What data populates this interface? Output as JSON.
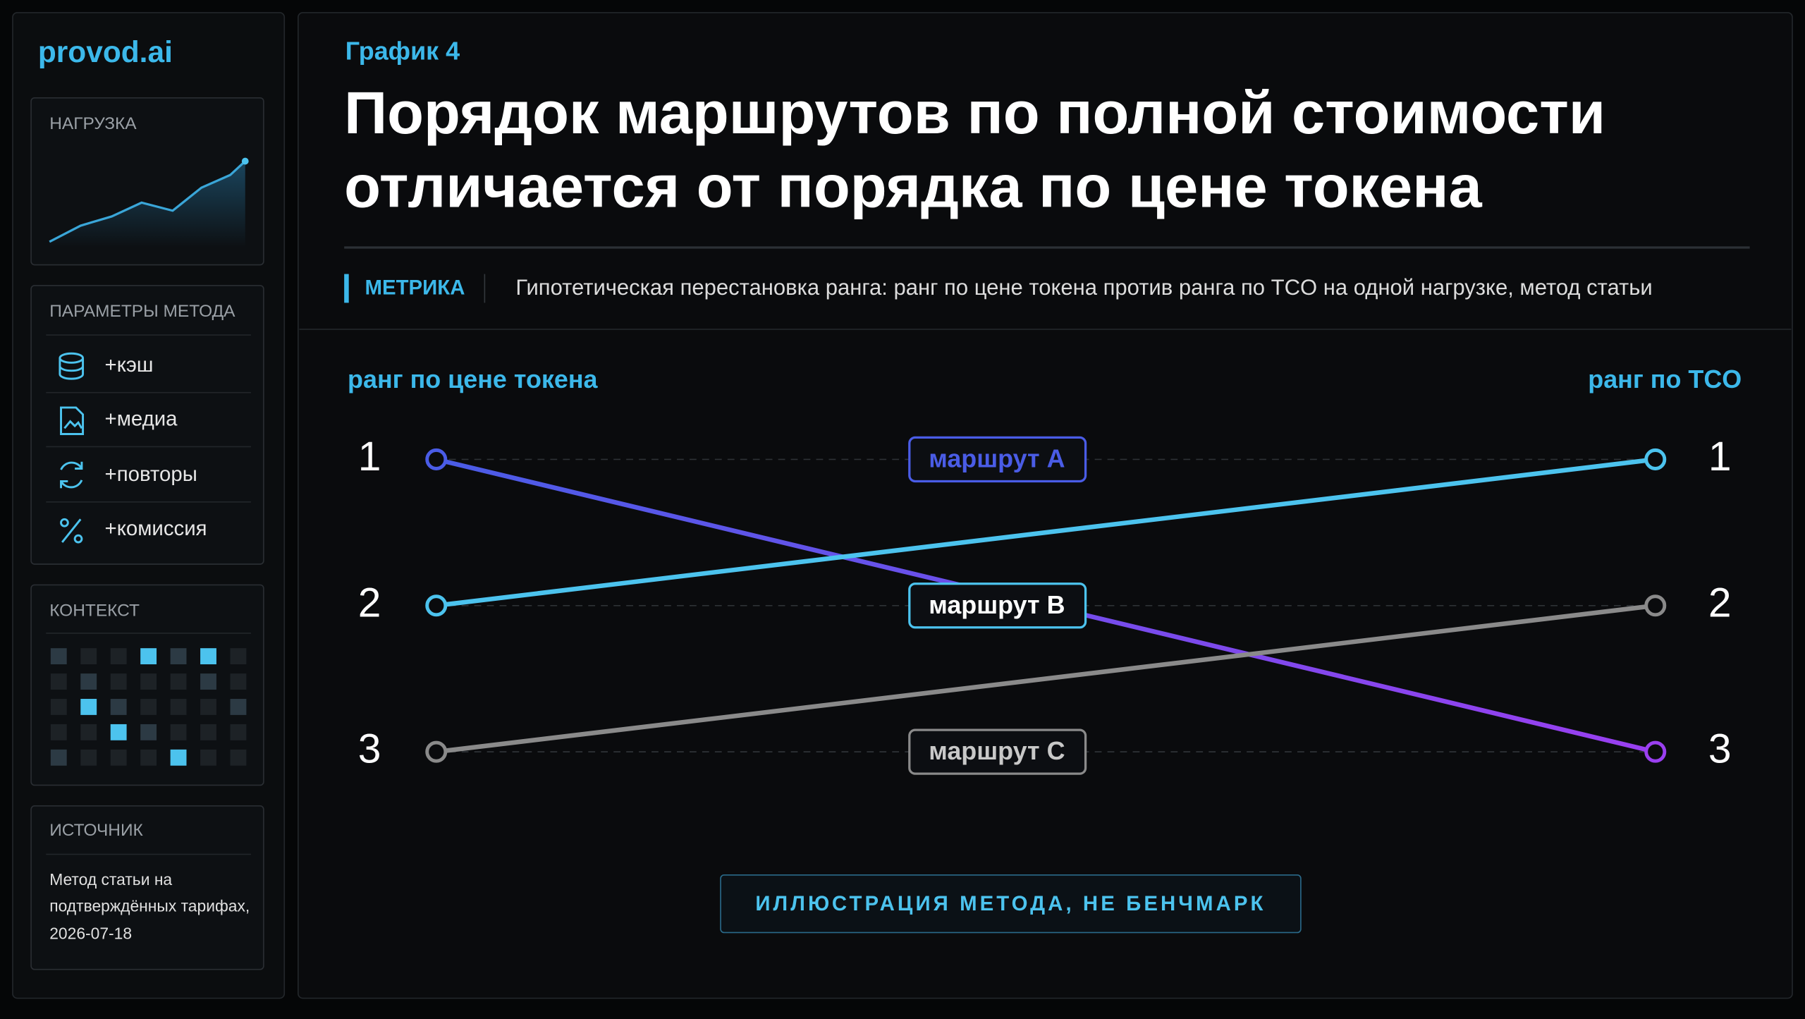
{
  "sidebar": {
    "brand": "provod.ai",
    "load_title": "НАГРУЗКА",
    "params_title": "ПАРАМЕТРЫ МЕТОДА",
    "params": [
      "+кэш",
      "+медиа",
      "+повторы",
      "+комиссия"
    ],
    "context_title": "КОНТЕКСТ",
    "source_title": "ИСТОЧНИК",
    "source_lines": [
      "Метод статьи на",
      "подтверждённых тарифах,",
      "2026-07-18"
    ]
  },
  "chart_data": {
    "type": "slope",
    "kicker": "График 4",
    "title": [
      "Порядок маршрутов по полной стоимости",
      "отличается от порядка по цене токена"
    ],
    "metric_label": "МЕТРИКА",
    "metric_text": "Гипотетическая перестановка ранга: ранг по цене токена против ранга по TCO на одной нагрузке, метод статьи",
    "x_labels": [
      "ранг по цене токена",
      "ранг по TCO"
    ],
    "ylim": [
      1,
      3
    ],
    "yticks": [
      1,
      2,
      3
    ],
    "y2lim": [
      1,
      3
    ],
    "y2ticks": [
      1,
      2,
      3
    ],
    "grid": true,
    "series": [
      {
        "name": "маршрут A",
        "color": "#4a5ce6",
        "end_color": "#9a3ff0",
        "values": [
          1,
          3
        ]
      },
      {
        "name": "маршрут B",
        "color": "#4cc3ee",
        "values": [
          2,
          1
        ]
      },
      {
        "name": "маршрут C",
        "color": "#8a8a8a",
        "values": [
          3,
          2
        ]
      }
    ],
    "footer": "ИЛЛЮСТРАЦИЯ МЕТОДА, НЕ БЕНЧМАРК"
  }
}
